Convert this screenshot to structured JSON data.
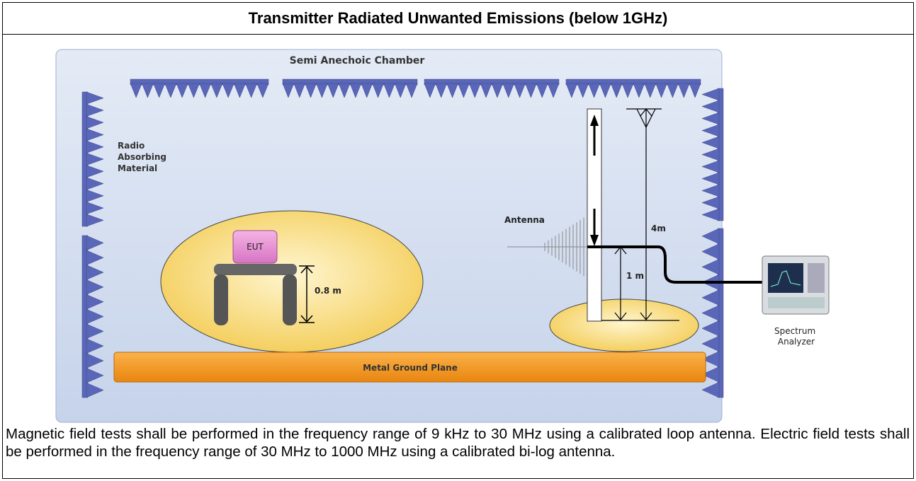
{
  "title": "Transmitter Radiated Unwanted Emissions (below 1GHz)",
  "diagram": {
    "chamber_label": "Semi Anechoic Chamber",
    "absorber_label": [
      "Radio",
      "Absorbing",
      "Material"
    ],
    "eut_label": "EUT",
    "table_height_label": "0.8 m",
    "antenna_label": "Antenna",
    "mast_height_label": "4m",
    "antenna_min_label": "1 m",
    "analyzer_label": [
      "Spectrum",
      "Analyzer"
    ],
    "ground_plane_label": "Metal Ground Plane"
  },
  "description": "Magnetic field tests shall be performed in the frequency range of 9 kHz to 30 MHz using a calibrated loop antenna. Electric field tests shall be performed in the frequency range of 30 MHz to 1000 MHz using a calibrated bi-log antenna."
}
